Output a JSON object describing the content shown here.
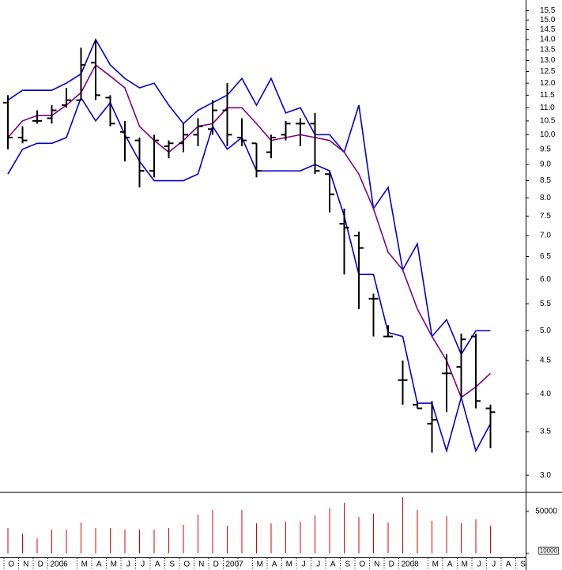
{
  "chart_data": {
    "type": "ohlc",
    "categories": [
      "O",
      "N",
      "D",
      "2006",
      null,
      "M",
      "A",
      "M",
      "J",
      "J",
      "A",
      "S",
      "O",
      "N",
      "D",
      "2007",
      null,
      "M",
      "A",
      "M",
      "J",
      "J",
      "A",
      "S",
      "O",
      "N",
      "D",
      "2008",
      null,
      "M",
      "A",
      "M",
      "J",
      "J",
      "A",
      "S"
    ],
    "open": [
      11.2,
      9.9,
      10.5,
      10.6,
      11.1,
      11.3,
      12.9,
      11.4,
      10.1,
      9.8,
      8.8,
      9.6,
      9.7,
      10.0,
      10.2,
      10.9,
      9.9,
      9.7,
      9.4,
      10.0,
      10.4,
      10.4,
      8.7,
      7.3,
      7.0,
      5.6,
      4.9,
      4.2,
      3.85,
      3.6,
      4.3,
      4.4,
      4.9,
      3.8,
      null,
      null
    ],
    "high": [
      11.5,
      10.3,
      10.9,
      11.1,
      11.8,
      13.6,
      14.0,
      11.5,
      10.5,
      9.9,
      10.0,
      9.8,
      10.4,
      10.6,
      11.3,
      12.0,
      10.6,
      9.7,
      10.0,
      10.5,
      10.6,
      10.8,
      8.8,
      7.7,
      7.1,
      5.7,
      5.1,
      4.5,
      3.9,
      3.9,
      4.6,
      4.95,
      4.95,
      3.85,
      null,
      null
    ],
    "low": [
      9.5,
      9.7,
      10.4,
      10.4,
      11.0,
      11.3,
      11.3,
      10.3,
      9.1,
      8.3,
      8.6,
      9.2,
      9.4,
      9.6,
      10.0,
      9.6,
      9.6,
      8.6,
      9.2,
      9.8,
      9.6,
      8.7,
      7.6,
      6.1,
      5.4,
      4.9,
      4.9,
      3.85,
      3.8,
      3.25,
      3.75,
      3.95,
      3.8,
      3.3,
      null,
      null
    ],
    "close": [
      9.9,
      9.8,
      10.5,
      10.9,
      11.3,
      12.8,
      11.5,
      10.4,
      9.9,
      8.8,
      9.8,
      9.7,
      10.0,
      10.3,
      10.9,
      10.0,
      9.8,
      8.8,
      9.9,
      10.4,
      10.4,
      8.8,
      8.1,
      7.2,
      6.7,
      5.6,
      4.9,
      4.2,
      3.8,
      3.65,
      4.3,
      4.85,
      3.9,
      3.75,
      null,
      null
    ],
    "bar_color": "#000000",
    "series": [
      {
        "color": "#0000cc",
        "values": [
          11.3,
          11.7,
          11.7,
          11.7,
          12.0,
          12.4,
          14.0,
          12.8,
          12.2,
          11.8,
          12.0,
          11.1,
          10.4,
          10.9,
          11.2,
          11.5,
          12.2,
          11.1,
          12.2,
          10.8,
          11.0,
          10.0,
          10.0,
          9.4,
          11.1,
          7.7,
          8.3,
          6.2,
          6.8,
          4.9,
          5.2,
          4.6,
          5.0,
          5.0,
          null,
          null
        ]
      },
      {
        "color": "#800080",
        "values": [
          9.9,
          10.5,
          10.7,
          10.7,
          11.1,
          11.6,
          12.8,
          12.3,
          11.8,
          10.3,
          9.8,
          9.4,
          9.8,
          10.3,
          10.4,
          11.0,
          11.0,
          10.4,
          9.8,
          9.9,
          10.0,
          9.9,
          9.8,
          9.4,
          8.7,
          7.7,
          6.6,
          6.2,
          5.4,
          4.9,
          4.5,
          3.95,
          4.1,
          4.3,
          null,
          null
        ]
      },
      {
        "color": "#0000cc",
        "values": [
          8.7,
          9.5,
          9.7,
          9.7,
          9.9,
          11.4,
          10.5,
          11.2,
          10.0,
          9.1,
          8.5,
          8.5,
          8.5,
          8.7,
          10.3,
          9.5,
          9.9,
          8.8,
          8.8,
          8.8,
          8.8,
          9.0,
          8.8,
          7.5,
          6.1,
          6.1,
          4.97,
          4.9,
          3.87,
          3.87,
          3.27,
          3.95,
          3.27,
          3.6,
          null,
          null
        ]
      }
    ],
    "log_scale": true,
    "ylim": [
      2.83,
      16.1
    ],
    "yticks": [
      {
        "value": 3,
        "label": "3.0"
      },
      3.5,
      {
        "value": 4,
        "label": "4.0"
      },
      4.5,
      {
        "value": 5,
        "label": "5.0"
      },
      5.5,
      {
        "value": 6,
        "label": "6.0"
      },
      6.5,
      {
        "value": 7,
        "label": "7.0"
      },
      7.5,
      {
        "value": 8,
        "label": "8.0"
      },
      8.5,
      {
        "value": 9,
        "label": "9.0"
      },
      9.5,
      {
        "value": 10,
        "label": "10.0"
      },
      10.5,
      {
        "value": 11,
        "label": "11.0"
      },
      11.5,
      {
        "value": 12,
        "label": "12.0"
      },
      12.5,
      {
        "value": 13,
        "label": "13.0"
      },
      13.5,
      {
        "value": 14,
        "label": "14.0"
      },
      14.5,
      {
        "value": 15,
        "label": "15.0"
      },
      15.5
    ],
    "volume": {
      "type": "bar",
      "color": "#dd0000",
      "log_scale": true,
      "values": [
        26400,
        21400,
        17800,
        24900,
        24900,
        32700,
        26400,
        26400,
        24900,
        24900,
        24900,
        26400,
        29800,
        44300,
        53100,
        28900,
        53100,
        31700,
        31700,
        33700,
        33700,
        42900,
        56500,
        69800,
        40400,
        45600,
        32700,
        86300,
        53100,
        34700,
        41700,
        31700,
        36900,
        28900,
        null,
        null
      ],
      "ylim": [
        10000,
        100000
      ],
      "yticks": [
        10000,
        50000
      ]
    }
  }
}
